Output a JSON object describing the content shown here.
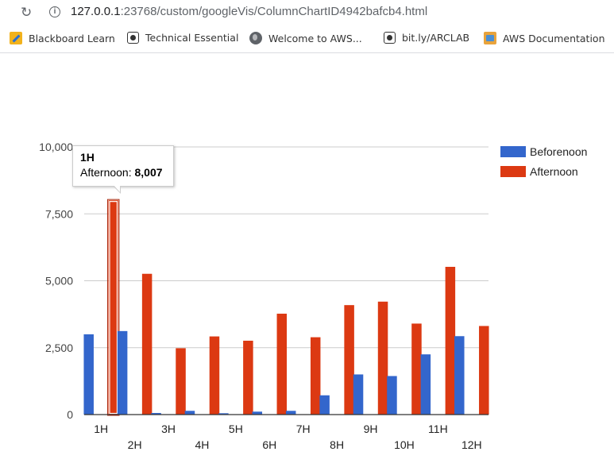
{
  "browser": {
    "url_host": "127.0.0.1",
    "url_path": ":23768/custom/googleVis/ColumnChartID4942bafcb4.html",
    "bookmarks": [
      {
        "label": "Blackboard Learn",
        "icon": "blackboard-icon"
      },
      {
        "label": "Technical Essential",
        "icon": "github-icon"
      },
      {
        "label": "Welcome to AWS...",
        "icon": "globe-icon"
      },
      {
        "label": "bit.ly/ARCLAB",
        "icon": "github-icon"
      },
      {
        "label": "AWS Documentation",
        "icon": "aws-icon"
      }
    ]
  },
  "tooltip": {
    "title": "1H",
    "series": "Afternoon",
    "value": "8,007"
  },
  "chart_data": {
    "type": "bar",
    "categories": [
      "1H",
      "2H",
      "3H",
      "4H",
      "5H",
      "6H",
      "7H",
      "8H",
      "9H",
      "10H",
      "11H",
      "12H"
    ],
    "series": [
      {
        "name": "Beforenoon",
        "color": "#3366cc",
        "values": [
          3000,
          3120,
          60,
          140,
          50,
          110,
          140,
          720,
          1500,
          1440,
          2250,
          2930
        ]
      },
      {
        "name": "Afternoon",
        "color": "#dc3912",
        "values": [
          8007,
          5260,
          2480,
          2920,
          2760,
          3770,
          2890,
          4090,
          4220,
          3400,
          5520,
          3310
        ]
      }
    ],
    "yticks": [
      "0",
      "2,500",
      "5,000",
      "7,500",
      "10,000"
    ],
    "ylim": [
      0,
      10000
    ],
    "highlighted": {
      "category": "1H",
      "series": "Afternoon"
    },
    "grid": true,
    "legend": "right"
  }
}
